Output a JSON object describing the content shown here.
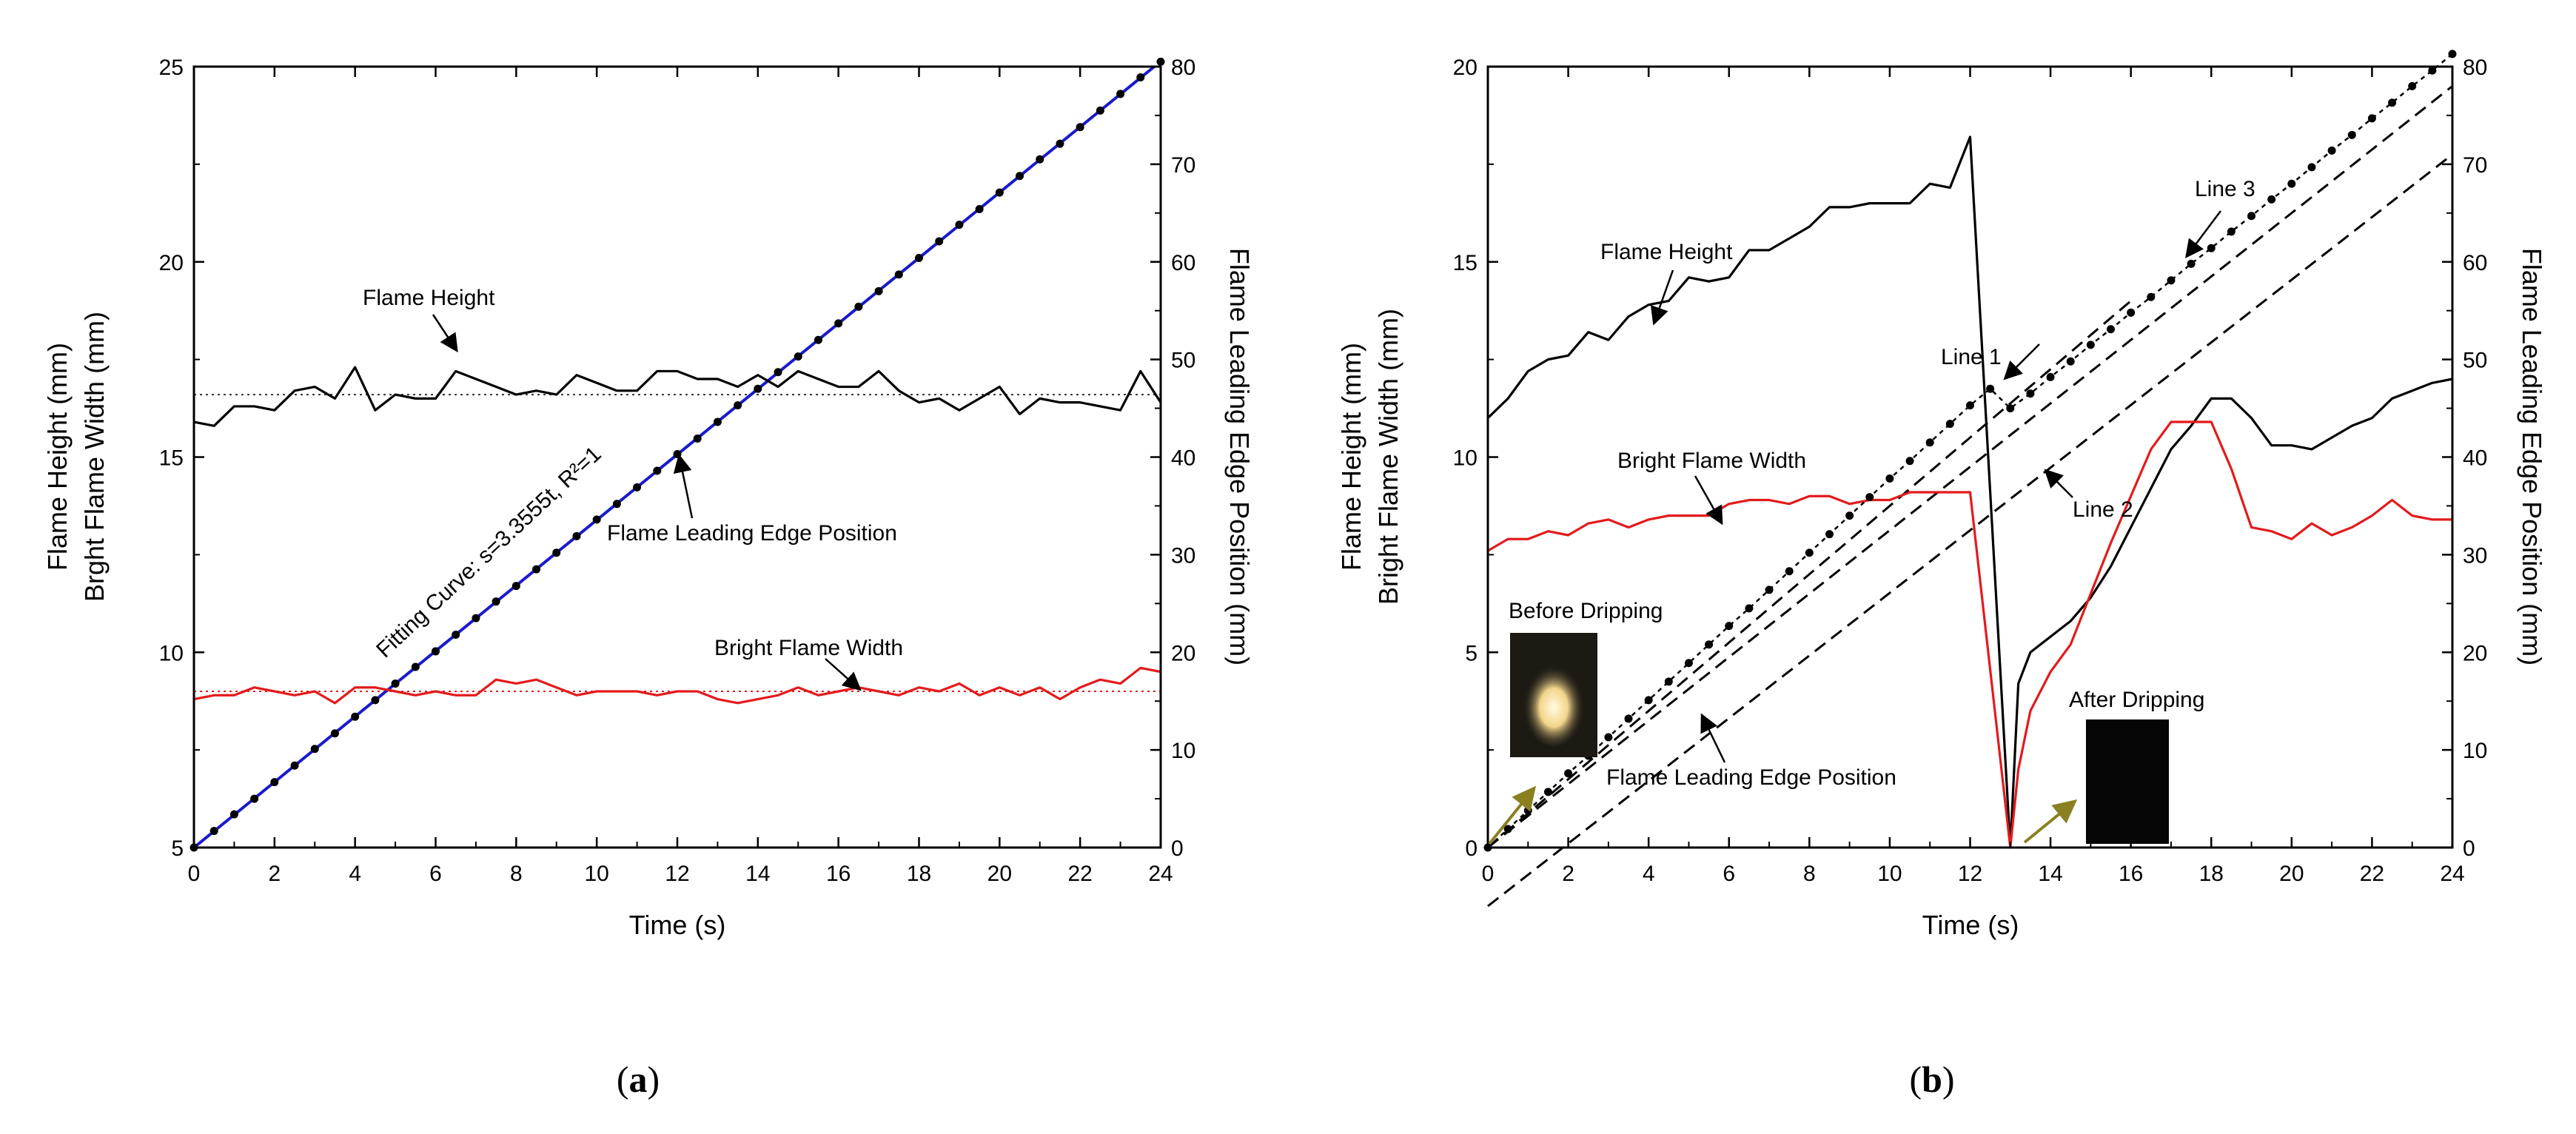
{
  "panel_labels": [
    "(a)",
    "(b)"
  ],
  "chart_data": [
    {
      "type": "line",
      "panel": "a",
      "xlabel": "Time (s)",
      "ylabel_left": [
        "Flame Height (mm)",
        "Brght Flame Width (mm)"
      ],
      "ylabel_right": "Flame Leading Edge Position (mm)",
      "xlim": [
        0,
        24
      ],
      "ylim_left": [
        5,
        25
      ],
      "ylim_right": [
        0,
        80
      ],
      "x_ticks": [
        0,
        2,
        4,
        6,
        8,
        10,
        12,
        14,
        16,
        18,
        20,
        22,
        24
      ],
      "y_ticks_left": [
        5,
        10,
        15,
        20,
        25
      ],
      "y_ticks_right": [
        0,
        10,
        20,
        30,
        40,
        50,
        60,
        70,
        80
      ],
      "grid": false,
      "annotations": [
        {
          "text": "Flame Height",
          "x": 6.8,
          "y": 17.3
        },
        {
          "text": "Flame Leading Edge Position",
          "x": 12.2,
          "y": 15.0
        },
        {
          "text": "Bright Flame Width",
          "x": 16.5,
          "y": 9.1
        },
        {
          "text": "Fitting Curve: s=3.3555t, R²=1",
          "color": "#1a1acc"
        }
      ],
      "reference_lines": [
        {
          "axis": "left",
          "y": 16.6,
          "color": "#333333",
          "style": "dotted"
        },
        {
          "axis": "left",
          "y": 9.0,
          "color": "#e31a1c",
          "style": "dotted"
        }
      ],
      "fit_line": {
        "axis": "right",
        "slope": 3.3555,
        "color": "#1a1acc"
      },
      "series": [
        {
          "name": "Flame Height",
          "axis": "left",
          "color": "#000000",
          "x": [
            0,
            0.5,
            1,
            1.5,
            2,
            2.5,
            3,
            3.5,
            4,
            4.5,
            5,
            5.5,
            6,
            6.5,
            7,
            7.5,
            8,
            8.5,
            9,
            9.5,
            10,
            10.5,
            11,
            11.5,
            12,
            12.5,
            13,
            13.5,
            14,
            14.5,
            15,
            15.5,
            16,
            16.5,
            17,
            17.5,
            18,
            18.5,
            19,
            19.5,
            20,
            20.5,
            21,
            21.5,
            22,
            22.5,
            23,
            23.5,
            24
          ],
          "y": [
            15.9,
            15.8,
            16.3,
            16.3,
            16.2,
            16.7,
            16.8,
            16.5,
            17.3,
            16.2,
            16.6,
            16.5,
            16.5,
            17.2,
            17.0,
            16.8,
            16.6,
            16.7,
            16.6,
            17.1,
            16.9,
            16.7,
            16.7,
            17.2,
            17.2,
            17.0,
            17.0,
            16.8,
            17.1,
            16.8,
            17.2,
            17.0,
            16.8,
            16.8,
            17.2,
            16.7,
            16.4,
            16.5,
            16.2,
            16.5,
            16.8,
            16.1,
            16.5,
            16.4,
            16.4,
            16.3,
            16.2,
            17.2,
            16.4
          ]
        },
        {
          "name": "Bright Flame Width",
          "axis": "left",
          "color": "#e31a1c",
          "x": [
            0,
            0.5,
            1,
            1.5,
            2,
            2.5,
            3,
            3.5,
            4,
            4.5,
            5,
            5.5,
            6,
            6.5,
            7,
            7.5,
            8,
            8.5,
            9,
            9.5,
            10,
            10.5,
            11,
            11.5,
            12,
            12.5,
            13,
            13.5,
            14,
            14.5,
            15,
            15.5,
            16,
            16.5,
            17,
            17.5,
            18,
            18.5,
            19,
            19.5,
            20,
            20.5,
            21,
            21.5,
            22,
            22.5,
            23,
            23.5,
            24
          ],
          "y": [
            8.8,
            8.9,
            8.9,
            9.1,
            9.0,
            8.9,
            9.0,
            8.7,
            9.1,
            9.1,
            9.0,
            8.9,
            9.0,
            8.9,
            8.9,
            9.3,
            9.2,
            9.3,
            9.1,
            8.9,
            9.0,
            9.0,
            9.0,
            8.9,
            9.0,
            9.0,
            8.8,
            8.7,
            8.8,
            8.9,
            9.1,
            8.9,
            9.0,
            9.1,
            9.0,
            8.9,
            9.1,
            9.0,
            9.2,
            8.9,
            9.1,
            8.9,
            9.1,
            8.8,
            9.1,
            9.3,
            9.2,
            9.6,
            9.5
          ]
        },
        {
          "name": "Flame Leading Edge Position",
          "axis": "right",
          "color": "#000000",
          "marker": "dot",
          "x": [
            0,
            0.5,
            1,
            1.5,
            2,
            2.5,
            3,
            3.5,
            4,
            4.5,
            5,
            5.5,
            6,
            6.5,
            7,
            7.5,
            8,
            8.5,
            9,
            9.5,
            10,
            10.5,
            11,
            11.5,
            12,
            12.5,
            13,
            13.5,
            14,
            14.5,
            15,
            15.5,
            16,
            16.5,
            17,
            17.5,
            18,
            18.5,
            19,
            19.5,
            20,
            20.5,
            21,
            21.5,
            22,
            22.5,
            23,
            23.5,
            24
          ],
          "y": [
            0,
            1.7,
            3.4,
            5.0,
            6.7,
            8.4,
            10.1,
            11.7,
            13.4,
            15.1,
            16.8,
            18.5,
            20.1,
            21.8,
            23.5,
            25.2,
            26.8,
            28.5,
            30.2,
            31.9,
            33.6,
            35.2,
            36.9,
            38.6,
            40.3,
            41.9,
            43.6,
            45.3,
            47.0,
            48.7,
            50.3,
            52.0,
            53.7,
            55.4,
            57.0,
            58.7,
            60.4,
            62.1,
            63.8,
            65.4,
            67.1,
            68.8,
            70.5,
            72.1,
            73.8,
            75.5,
            77.2,
            78.9,
            80.5
          ]
        }
      ]
    },
    {
      "type": "line",
      "panel": "b",
      "xlabel": "Time (s)",
      "ylabel_left": [
        "Flame Height (mm)",
        "Bright Flame Width (mm)"
      ],
      "ylabel_right": "Flame Leading Edge Position (mm)",
      "xlim": [
        0,
        24
      ],
      "ylim_left": [
        0,
        20
      ],
      "ylim_right": [
        0,
        80
      ],
      "x_ticks": [
        0,
        2,
        4,
        6,
        8,
        10,
        12,
        14,
        16,
        18,
        20,
        22,
        24
      ],
      "y_ticks_left": [
        0,
        5,
        10,
        15,
        20
      ],
      "y_ticks_right": [
        0,
        10,
        20,
        30,
        40,
        50,
        60,
        70,
        80
      ],
      "grid": false,
      "annotations": [
        {
          "text": "Flame Height"
        },
        {
          "text": "Line 1"
        },
        {
          "text": "Line 3"
        },
        {
          "text": "Line 2"
        },
        {
          "text": "Bright Flame Width"
        },
        {
          "text": "Before Dripping"
        },
        {
          "text": "After Dripping"
        },
        {
          "text": "Flame Leading Edge Position"
        }
      ],
      "dashed_lines": [
        {
          "name": "Line 1",
          "axis": "right",
          "x": [
            0,
            16
          ],
          "y": [
            0,
            56
          ]
        },
        {
          "name": "Line 2",
          "axis": "right",
          "x": [
            0,
            24
          ],
          "y": [
            -6,
            71
          ]
        },
        {
          "name": "Line 3",
          "axis": "right",
          "x": [
            0,
            24
          ],
          "y": [
            0,
            78
          ]
        }
      ],
      "series": [
        {
          "name": "Flame Height",
          "axis": "left",
          "color": "#000000",
          "x": [
            0,
            0.5,
            1,
            1.5,
            2,
            2.5,
            3,
            3.5,
            4,
            4.5,
            5,
            5.5,
            6,
            6.5,
            7,
            7.5,
            8,
            8.5,
            9,
            9.5,
            10,
            10.5,
            11,
            11.5,
            12,
            13,
            13.2,
            13.5,
            14,
            14.5,
            15,
            15.5,
            16,
            16.5,
            17,
            17.5,
            18,
            18.5,
            19,
            19.5,
            20,
            20.5,
            21,
            21.5,
            22,
            22.5,
            23,
            23.5,
            24
          ],
          "y": [
            11.0,
            11.5,
            12.2,
            12.5,
            12.6,
            13.2,
            13.0,
            13.6,
            13.9,
            14.0,
            14.6,
            14.5,
            14.6,
            15.3,
            15.3,
            15.6,
            15.9,
            16.4,
            16.4,
            16.5,
            16.5,
            16.5,
            17.0,
            16.9,
            18.2,
            0,
            4.2,
            5.0,
            5.4,
            5.8,
            6.4,
            7.2,
            8.2,
            9.2,
            10.2,
            10.8,
            11.5,
            11.5,
            11.0,
            10.3,
            10.3,
            10.2,
            10.5,
            10.8,
            11.0,
            11.5,
            11.7,
            11.9,
            12.0
          ]
        },
        {
          "name": "Bright Flame Width",
          "axis": "left",
          "color": "#e31a1c",
          "x": [
            0,
            0.5,
            1,
            1.5,
            2,
            2.5,
            3,
            3.5,
            4,
            4.5,
            5,
            5.5,
            6,
            6.5,
            7,
            7.5,
            8,
            8.5,
            9,
            9.5,
            10,
            10.5,
            11,
            11.5,
            12,
            13,
            13.2,
            13.5,
            14,
            14.5,
            15,
            15.5,
            16,
            16.5,
            17,
            17.5,
            18,
            18.5,
            19,
            19.5,
            20,
            20.5,
            21,
            21.5,
            22,
            22.5,
            23,
            23.5,
            24
          ],
          "y": [
            7.6,
            7.9,
            7.9,
            8.1,
            8.0,
            8.3,
            8.4,
            8.2,
            8.4,
            8.5,
            8.5,
            8.5,
            8.8,
            8.9,
            8.9,
            8.8,
            9.0,
            9.0,
            8.8,
            8.9,
            8.9,
            9.1,
            9.1,
            9.1,
            9.1,
            0,
            2.0,
            3.5,
            4.5,
            5.2,
            6.5,
            7.8,
            9.0,
            10.2,
            10.9,
            10.9,
            10.9,
            9.7,
            8.2,
            8.1,
            7.9,
            8.3,
            8.0,
            8.2,
            8.5,
            8.9,
            8.5,
            8.4,
            8.4
          ]
        },
        {
          "name": "Flame Leading Edge Position",
          "axis": "right",
          "color": "#000000",
          "marker": "dot",
          "x": [
            0,
            0.5,
            1,
            1.5,
            2,
            2.5,
            3,
            3.5,
            4,
            4.5,
            5,
            5.5,
            6,
            6.5,
            7,
            7.5,
            8,
            8.5,
            9,
            9.5,
            10,
            10.5,
            11,
            11.5,
            12,
            12.5,
            13,
            13.5,
            14,
            14.5,
            15,
            15.5,
            16,
            16.5,
            17,
            17.5,
            18,
            18.5,
            19,
            19.5,
            20,
            20.5,
            21,
            21.5,
            22,
            22.5,
            23,
            23.5,
            24
          ],
          "y": [
            0,
            1.9,
            3.8,
            5.7,
            7.6,
            9.4,
            11.3,
            13.2,
            15.1,
            17.0,
            18.9,
            20.8,
            22.7,
            24.5,
            26.4,
            28.3,
            30.2,
            32.1,
            34.0,
            35.9,
            37.8,
            39.6,
            41.5,
            43.4,
            45.3,
            47.0,
            45.0,
            46.5,
            48.2,
            49.8,
            51.5,
            53.1,
            54.8,
            56.4,
            58.1,
            59.8,
            61.4,
            63.1,
            64.7,
            66.4,
            68.0,
            69.7,
            71.4,
            73.0,
            74.7,
            76.3,
            78.0,
            79.6,
            81.3
          ]
        }
      ]
    }
  ]
}
